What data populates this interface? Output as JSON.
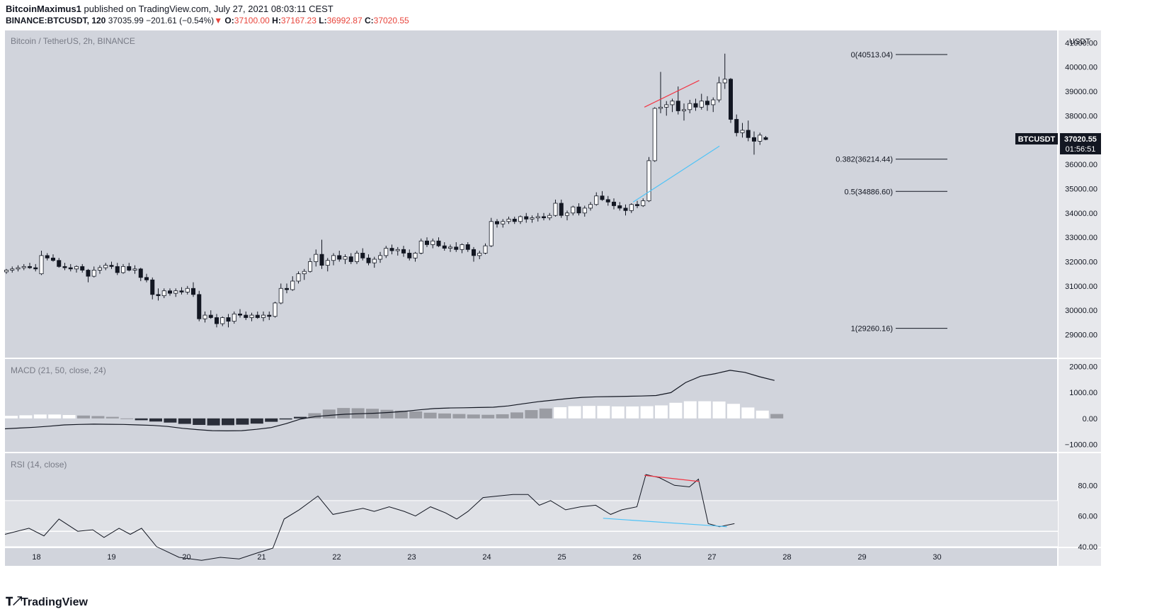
{
  "header": {
    "author": "BitcoinMaximus1",
    "published": "published on TradingView.com, July 27, 2021 08:03:11 CEST",
    "symbol": "BINANCE:BTCUSDT, 120",
    "last": "37035.99",
    "change": "−201.61 (−0.54%)",
    "o_label": "O:",
    "o_val": "37100.00",
    "h_label": "H:",
    "h_val": "37167.23",
    "l_label": "L:",
    "l_val": "36992.87",
    "c_label": "C:",
    "c_val": "37020.55",
    "down_arrow": "▼"
  },
  "brand": {
    "name": "TradingView",
    "logo": "tradingview-logo"
  },
  "colors": {
    "panel_bg": "#d1d4dc",
    "band_bg": "#dfe1e6",
    "fib": "#131722",
    "red": "#f23645",
    "blue": "#4fc3f7",
    "label_bg": "#131722"
  },
  "chart_data": [
    {
      "type": "candlestick",
      "title": "Bitcoin / TetherUS, 2h, BINANCE",
      "y_unit": "USDT",
      "ylim": [
        28200,
        41300
      ],
      "xlim": [
        17.58,
        31
      ],
      "x_ticks": [
        "18",
        "19",
        "20",
        "21",
        "22",
        "23",
        "24",
        "25",
        "26",
        "27",
        "28",
        "29",
        "30"
      ],
      "y_ticks": [
        "29000.00",
        "30000.00",
        "31000.00",
        "32000.00",
        "33000.00",
        "34000.00",
        "35000.00",
        "36000.00",
        "37000.00",
        "38000.00",
        "39000.00",
        "40000.00",
        "41000.00"
      ],
      "candles": [
        [
          31580,
          31700,
          31500,
          31650
        ],
        [
          31650,
          31800,
          31550,
          31700
        ],
        [
          31700,
          31850,
          31600,
          31750
        ],
        [
          31750,
          31900,
          31650,
          31800
        ],
        [
          31800,
          31950,
          31700,
          31750
        ],
        [
          31750,
          31900,
          31600,
          31700
        ],
        [
          31500,
          32450,
          31450,
          32250
        ],
        [
          32250,
          32350,
          32050,
          32150
        ],
        [
          32150,
          32300,
          32000,
          32050
        ],
        [
          32050,
          32150,
          31750,
          31800
        ],
        [
          31800,
          31950,
          31650,
          31750
        ],
        [
          31750,
          31900,
          31600,
          31700
        ],
        [
          31700,
          31850,
          31550,
          31800
        ],
        [
          31800,
          31900,
          31550,
          31650
        ],
        [
          31650,
          31700,
          31150,
          31400
        ],
        [
          31400,
          31800,
          31350,
          31650
        ],
        [
          31650,
          31850,
          31500,
          31750
        ],
        [
          31750,
          31950,
          31650,
          31850
        ],
        [
          31850,
          32000,
          31700,
          31800
        ],
        [
          31800,
          31950,
          31450,
          31550
        ],
        [
          31550,
          31900,
          31500,
          31800
        ],
        [
          31800,
          31950,
          31600,
          31650
        ],
        [
          31650,
          31850,
          31500,
          31700
        ],
        [
          31700,
          31750,
          31200,
          31350
        ],
        [
          31350,
          31500,
          31150,
          31250
        ],
        [
          31250,
          31350,
          30450,
          30650
        ],
        [
          30650,
          30900,
          30400,
          30600
        ],
        [
          30600,
          30900,
          30500,
          30800
        ],
        [
          30800,
          30900,
          30600,
          30700
        ],
        [
          30700,
          30900,
          30550,
          30800
        ],
        [
          30800,
          30950,
          30650,
          30750
        ],
        [
          30750,
          31000,
          30650,
          30900
        ],
        [
          30900,
          31150,
          30550,
          30650
        ],
        [
          30650,
          30800,
          29550,
          29650
        ],
        [
          29650,
          29950,
          29500,
          29800
        ],
        [
          29800,
          30000,
          29650,
          29700
        ],
        [
          29700,
          29850,
          29300,
          29450
        ],
        [
          29450,
          29750,
          29350,
          29700
        ],
        [
          29700,
          29850,
          29300,
          29550
        ],
        [
          29550,
          29950,
          29450,
          29850
        ],
        [
          29850,
          30050,
          29700,
          29800
        ],
        [
          29800,
          29950,
          29600,
          29700
        ],
        [
          29700,
          29900,
          29550,
          29800
        ],
        [
          29800,
          29950,
          29650,
          29700
        ],
        [
          29700,
          29950,
          29550,
          29800
        ],
        [
          29800,
          29950,
          29600,
          29750
        ],
        [
          29750,
          30350,
          29700,
          30300
        ],
        [
          30300,
          31100,
          30250,
          30900
        ],
        [
          30900,
          31100,
          30700,
          30850
        ],
        [
          30850,
          31400,
          30800,
          31200
        ],
        [
          31200,
          31600,
          31100,
          31500
        ],
        [
          31500,
          31700,
          31250,
          31600
        ],
        [
          31600,
          32150,
          31550,
          32000
        ],
        [
          32000,
          32500,
          31800,
          32300
        ],
        [
          32300,
          32900,
          31700,
          31850
        ],
        [
          31850,
          32150,
          31600,
          32050
        ],
        [
          32050,
          32350,
          31850,
          32250
        ],
        [
          32250,
          32450,
          32000,
          32100
        ],
        [
          32100,
          32300,
          31900,
          32200
        ],
        [
          32200,
          32350,
          31900,
          32000
        ],
        [
          32000,
          32450,
          31900,
          32350
        ],
        [
          32350,
          32550,
          32050,
          32150
        ],
        [
          32150,
          32300,
          31850,
          31950
        ],
        [
          31950,
          32200,
          31750,
          32100
        ],
        [
          32100,
          32400,
          31950,
          32250
        ],
        [
          32250,
          32650,
          32150,
          32550
        ],
        [
          32550,
          32700,
          32300,
          32450
        ],
        [
          32450,
          32600,
          32250,
          32500
        ],
        [
          32500,
          32650,
          32200,
          32350
        ],
        [
          32350,
          32500,
          32050,
          32150
        ],
        [
          32150,
          32400,
          32000,
          32350
        ],
        [
          32350,
          32950,
          32300,
          32850
        ],
        [
          32850,
          33000,
          32600,
          32700
        ],
        [
          32700,
          32950,
          32550,
          32850
        ],
        [
          32850,
          33000,
          32600,
          32650
        ],
        [
          32650,
          32800,
          32450,
          32550
        ],
        [
          32550,
          32700,
          32400,
          32600
        ],
        [
          32600,
          32800,
          32400,
          32500
        ],
        [
          32500,
          32750,
          32350,
          32700
        ],
        [
          32700,
          32800,
          32400,
          32500
        ],
        [
          32500,
          32600,
          32000,
          32250
        ],
        [
          32250,
          32450,
          32100,
          32350
        ],
        [
          32350,
          32750,
          32300,
          32650
        ],
        [
          32650,
          33800,
          32600,
          33650
        ],
        [
          33650,
          33750,
          33400,
          33550
        ],
        [
          33550,
          33750,
          33400,
          33650
        ],
        [
          33650,
          33850,
          33550,
          33750
        ],
        [
          33750,
          33850,
          33550,
          33650
        ],
        [
          33650,
          33900,
          33550,
          33850
        ],
        [
          33850,
          34000,
          33600,
          33750
        ],
        [
          33750,
          33900,
          33600,
          33800
        ],
        [
          33800,
          34000,
          33650,
          33850
        ],
        [
          33850,
          34000,
          33700,
          33800
        ],
        [
          33800,
          34000,
          33700,
          33900
        ],
        [
          33900,
          34550,
          33850,
          34400
        ],
        [
          34400,
          34550,
          33800,
          33900
        ],
        [
          33900,
          34100,
          33700,
          34000
        ],
        [
          34000,
          34300,
          33900,
          34250
        ],
        [
          34250,
          34400,
          33900,
          34000
        ],
        [
          34000,
          34300,
          33850,
          34200
        ],
        [
          34200,
          34450,
          34100,
          34350
        ],
        [
          34350,
          34850,
          34300,
          34700
        ],
        [
          34700,
          34900,
          34500,
          34550
        ],
        [
          34550,
          34700,
          34300,
          34450
        ],
        [
          34450,
          34600,
          34150,
          34300
        ],
        [
          34300,
          34450,
          34100,
          34200
        ],
        [
          34200,
          34350,
          33900,
          34100
        ],
        [
          34100,
          34400,
          34000,
          34350
        ],
        [
          34350,
          34500,
          34200,
          34300
        ],
        [
          34300,
          34600,
          34250,
          34500
        ],
        [
          34500,
          36300,
          34450,
          36150
        ],
        [
          36150,
          38350,
          36100,
          38300
        ],
        [
          38300,
          39800,
          38100,
          38350
        ],
        [
          38350,
          38600,
          38000,
          38450
        ],
        [
          38450,
          38700,
          38150,
          38600
        ],
        [
          38600,
          39200,
          38050,
          38200
        ],
        [
          38200,
          38500,
          37800,
          38250
        ],
        [
          38250,
          38650,
          38100,
          38500
        ],
        [
          38500,
          38700,
          38200,
          38350
        ],
        [
          38350,
          38900,
          38250,
          38600
        ],
        [
          38600,
          38800,
          38200,
          38450
        ],
        [
          38450,
          38750,
          38150,
          38650
        ],
        [
          38650,
          39600,
          38550,
          39350
        ],
        [
          39350,
          40550,
          39100,
          39500
        ],
        [
          39500,
          39550,
          37700,
          37850
        ],
        [
          37850,
          38050,
          37150,
          37300
        ],
        [
          37300,
          37700,
          37100,
          37400
        ],
        [
          37400,
          37800,
          36950,
          37100
        ],
        [
          37100,
          37350,
          36400,
          36950
        ],
        [
          36950,
          37300,
          36800,
          37200
        ],
        [
          37100,
          37167,
          36993,
          37021
        ]
      ],
      "fib_levels": [
        {
          "label": "0(40513.04)",
          "value": 40513.04
        },
        {
          "label": "0.382(36214.44)",
          "value": 36214.44
        },
        {
          "label": "0.5(34886.60)",
          "value": 34886.6
        },
        {
          "label": "1(29260.16)",
          "value": 29260.16
        }
      ],
      "last_price_label": {
        "symbol": "BTCUSDT",
        "price": "37020.55",
        "countdown": "01:56:51",
        "value": 37020.55
      },
      "trendlines": [
        {
          "color": "red",
          "from": [
            26.1,
            38350
          ],
          "to": [
            26.83,
            39450
          ]
        },
        {
          "color": "blue",
          "from": [
            25.95,
            34450
          ],
          "to": [
            27.1,
            36750
          ]
        }
      ]
    },
    {
      "type": "line+histogram",
      "title": "MACD (21, 50, close, 24)",
      "ylim": [
        -1230,
        2200
      ],
      "y_ticks": [
        "2000.00",
        "1000.00",
        "0.00",
        "−1000.00"
      ],
      "macd": [
        -400,
        -370,
        -340,
        -300,
        -250,
        -230,
        -220,
        -225,
        -230,
        -250,
        -270,
        -310,
        -380,
        -430,
        -470,
        -480,
        -470,
        -420,
        -350,
        -200,
        -20,
        70,
        120,
        160,
        180,
        200,
        230,
        270,
        330,
        380,
        400,
        410,
        420,
        430,
        480,
        560,
        640,
        700,
        760,
        810,
        830,
        840,
        850,
        860,
        880,
        990,
        1380,
        1620,
        1720,
        1850,
        1770,
        1600,
        1460
      ],
      "histogram": [
        100,
        120,
        150,
        150,
        130,
        110,
        90,
        60,
        0,
        -70,
        -120,
        -160,
        -210,
        -250,
        -270,
        -260,
        -240,
        -200,
        -130,
        -40,
        60,
        200,
        340,
        400,
        390,
        370,
        330,
        300,
        270,
        220,
        190,
        170,
        150,
        140,
        160,
        230,
        320,
        380,
        430,
        470,
        480,
        480,
        460,
        460,
        470,
        500,
        600,
        660,
        660,
        650,
        560,
        420,
        300,
        170
      ],
      "hist_white_ranges": [
        [
          0,
          4
        ],
        [
          38,
          52
        ]
      ],
      "hist_black_ranges": [
        [
          9,
          20
        ]
      ]
    },
    {
      "type": "line",
      "title": "RSI (14, close)",
      "ylim": [
        27,
        100
      ],
      "y_ticks": [
        "80.00",
        "60.00",
        "40.00"
      ],
      "band": [
        40,
        70
      ],
      "midline": 50,
      "rsi": [
        [
          17.58,
          48
        ],
        [
          17.9,
          52
        ],
        [
          18.1,
          47
        ],
        [
          18.3,
          58
        ],
        [
          18.55,
          50
        ],
        [
          18.75,
          51
        ],
        [
          18.9,
          46
        ],
        [
          19.1,
          52
        ],
        [
          19.25,
          48
        ],
        [
          19.4,
          52
        ],
        [
          19.6,
          40
        ],
        [
          19.9,
          33
        ],
        [
          20.2,
          31
        ],
        [
          20.45,
          33
        ],
        [
          20.7,
          32
        ],
        [
          20.95,
          36
        ],
        [
          21.15,
          39
        ],
        [
          21.3,
          58
        ],
        [
          21.5,
          64
        ],
        [
          21.75,
          73
        ],
        [
          21.95,
          61
        ],
        [
          22.15,
          63
        ],
        [
          22.35,
          65
        ],
        [
          22.5,
          63
        ],
        [
          22.7,
          66
        ],
        [
          22.9,
          63
        ],
        [
          23.05,
          60
        ],
        [
          23.25,
          66
        ],
        [
          23.45,
          62
        ],
        [
          23.6,
          58
        ],
        [
          23.75,
          63
        ],
        [
          23.95,
          72
        ],
        [
          24.15,
          73
        ],
        [
          24.35,
          74
        ],
        [
          24.55,
          74
        ],
        [
          24.7,
          67
        ],
        [
          24.85,
          70
        ],
        [
          25.05,
          64
        ],
        [
          25.25,
          66
        ],
        [
          25.45,
          67
        ],
        [
          25.65,
          61
        ],
        [
          25.8,
          64
        ],
        [
          26.0,
          66
        ],
        [
          26.12,
          87
        ],
        [
          26.3,
          85
        ],
        [
          26.5,
          80
        ],
        [
          26.7,
          79
        ],
        [
          26.82,
          84
        ],
        [
          26.95,
          55
        ],
        [
          27.1,
          53
        ],
        [
          27.3,
          55
        ]
      ],
      "trendlines": [
        {
          "color": "red",
          "from": [
            26.1,
            86.5
          ],
          "to": [
            26.83,
            82.5
          ]
        },
        {
          "color": "blue",
          "from": [
            25.55,
            58.5
          ],
          "to": [
            27.2,
            53
          ]
        }
      ]
    }
  ]
}
